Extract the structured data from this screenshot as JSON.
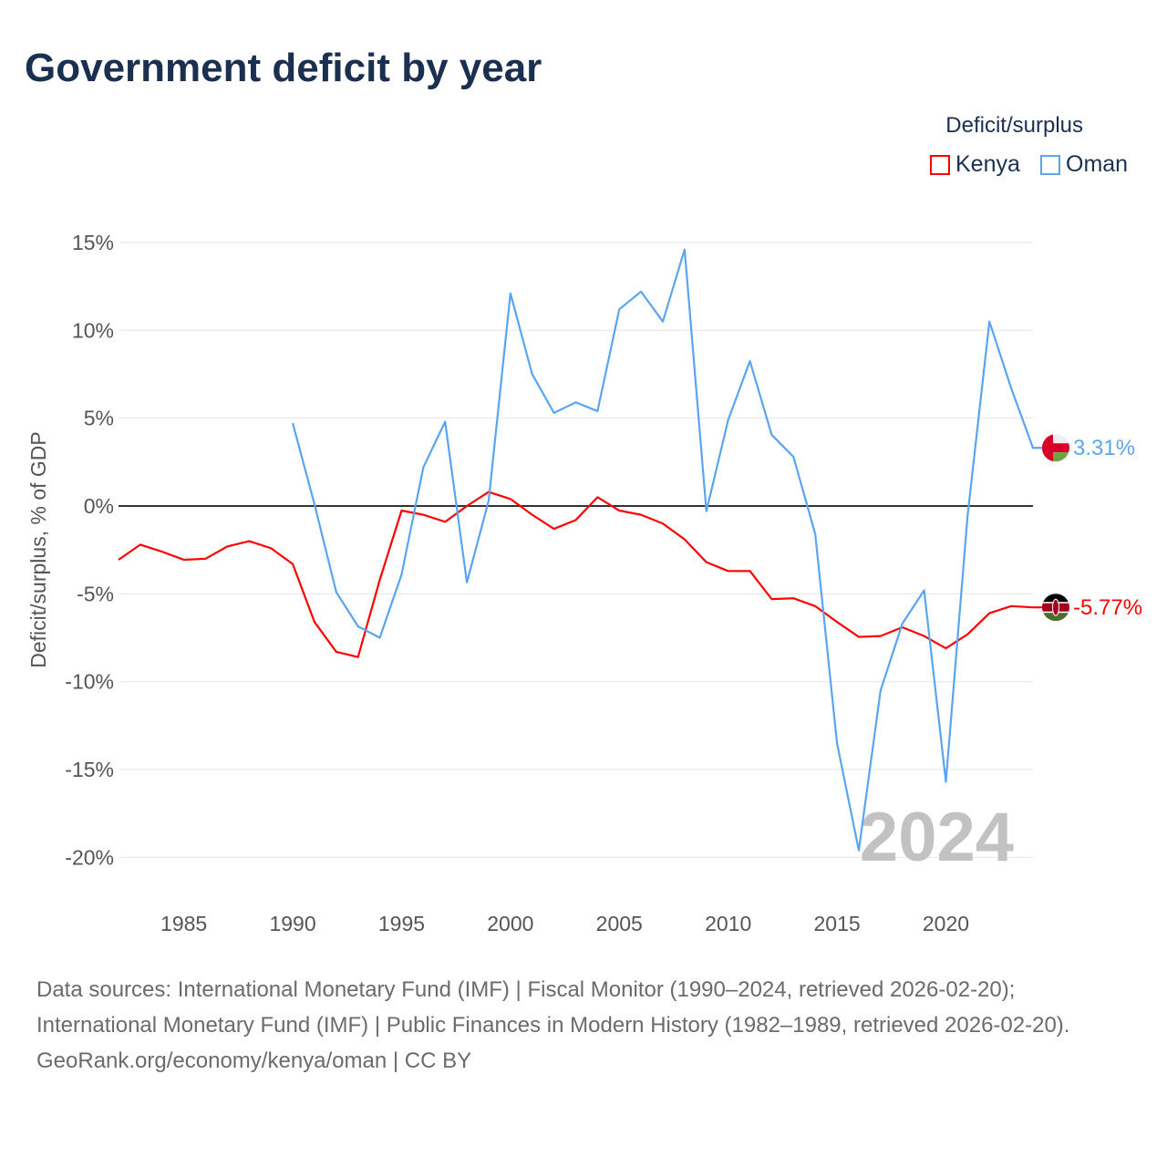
{
  "title": "Government deficit by year",
  "legend": {
    "title": "Deficit/surplus",
    "items": [
      {
        "label": "Kenya",
        "color": "#ff0000"
      },
      {
        "label": "Oman",
        "color": "#5aa5ee"
      }
    ]
  },
  "footer": {
    "sources": "Data sources: International Monetary Fund (IMF) | Fiscal Monitor (1990–2024, retrieved 2026-02-20); International Monetary Fund (IMF) | Public Finances in Modern History (1982–1989, retrieved 2026-02-20).",
    "credit": "GeoRank.org/economy/kenya/oman | CC BY"
  },
  "chart_data": {
    "type": "line",
    "title": "Government deficit by year",
    "xlabel": "",
    "ylabel": "Deficit/surplus, % of GDP",
    "xlim": [
      1982,
      2024
    ],
    "ylim": [
      -22,
      16
    ],
    "yticks": [
      15,
      10,
      5,
      0,
      -5,
      -10,
      -15,
      -20
    ],
    "ytick_labels": [
      "15%",
      "10%",
      "5%",
      "0%",
      "-5%",
      "-10%",
      "-15%",
      "-20%"
    ],
    "xticks": [
      1985,
      1990,
      1995,
      2000,
      2005,
      2010,
      2015,
      2020
    ],
    "xtick_labels": [
      "1985",
      "1990",
      "1995",
      "2000",
      "2005",
      "2010",
      "2015",
      "2020"
    ],
    "watermark_year": "2024",
    "series": [
      {
        "name": "Kenya",
        "color": "#ff0000",
        "end_label": "-5.77%",
        "start_year": 1982,
        "values": [
          -3.06,
          -2.2,
          -2.6,
          -3.06,
          -3.0,
          -2.3,
          -2.0,
          -2.4,
          -3.3,
          -6.6,
          -8.3,
          -8.6,
          -4.2,
          -0.26,
          -0.5,
          -0.9,
          0.0,
          0.8,
          0.4,
          -0.5,
          -1.3,
          -0.8,
          0.5,
          -0.26,
          -0.5,
          -1.0,
          -1.9,
          -3.2,
          -3.7,
          -3.7,
          -5.3,
          -5.25,
          -5.7,
          -6.6,
          -7.45,
          -7.4,
          -6.9,
          -7.4,
          -8.1,
          -7.3,
          -6.1,
          -5.7,
          -5.77
        ]
      },
      {
        "name": "Oman",
        "color": "#5aa5ee",
        "end_label": "3.31%",
        "start_year": 1990,
        "values": [
          4.72,
          0.1,
          -4.9,
          -6.85,
          -7.5,
          -3.9,
          2.2,
          4.8,
          -4.35,
          0.3,
          12.1,
          7.5,
          5.3,
          5.9,
          5.4,
          11.2,
          12.2,
          10.5,
          14.6,
          -0.3,
          4.9,
          8.25,
          4.05,
          2.8,
          -1.6,
          -13.5,
          -19.6,
          -10.5,
          -6.7,
          -4.8,
          -15.7,
          -0.5,
          10.5,
          6.7,
          3.31
        ]
      }
    ],
    "grid": true,
    "legend_position": "top-right"
  }
}
